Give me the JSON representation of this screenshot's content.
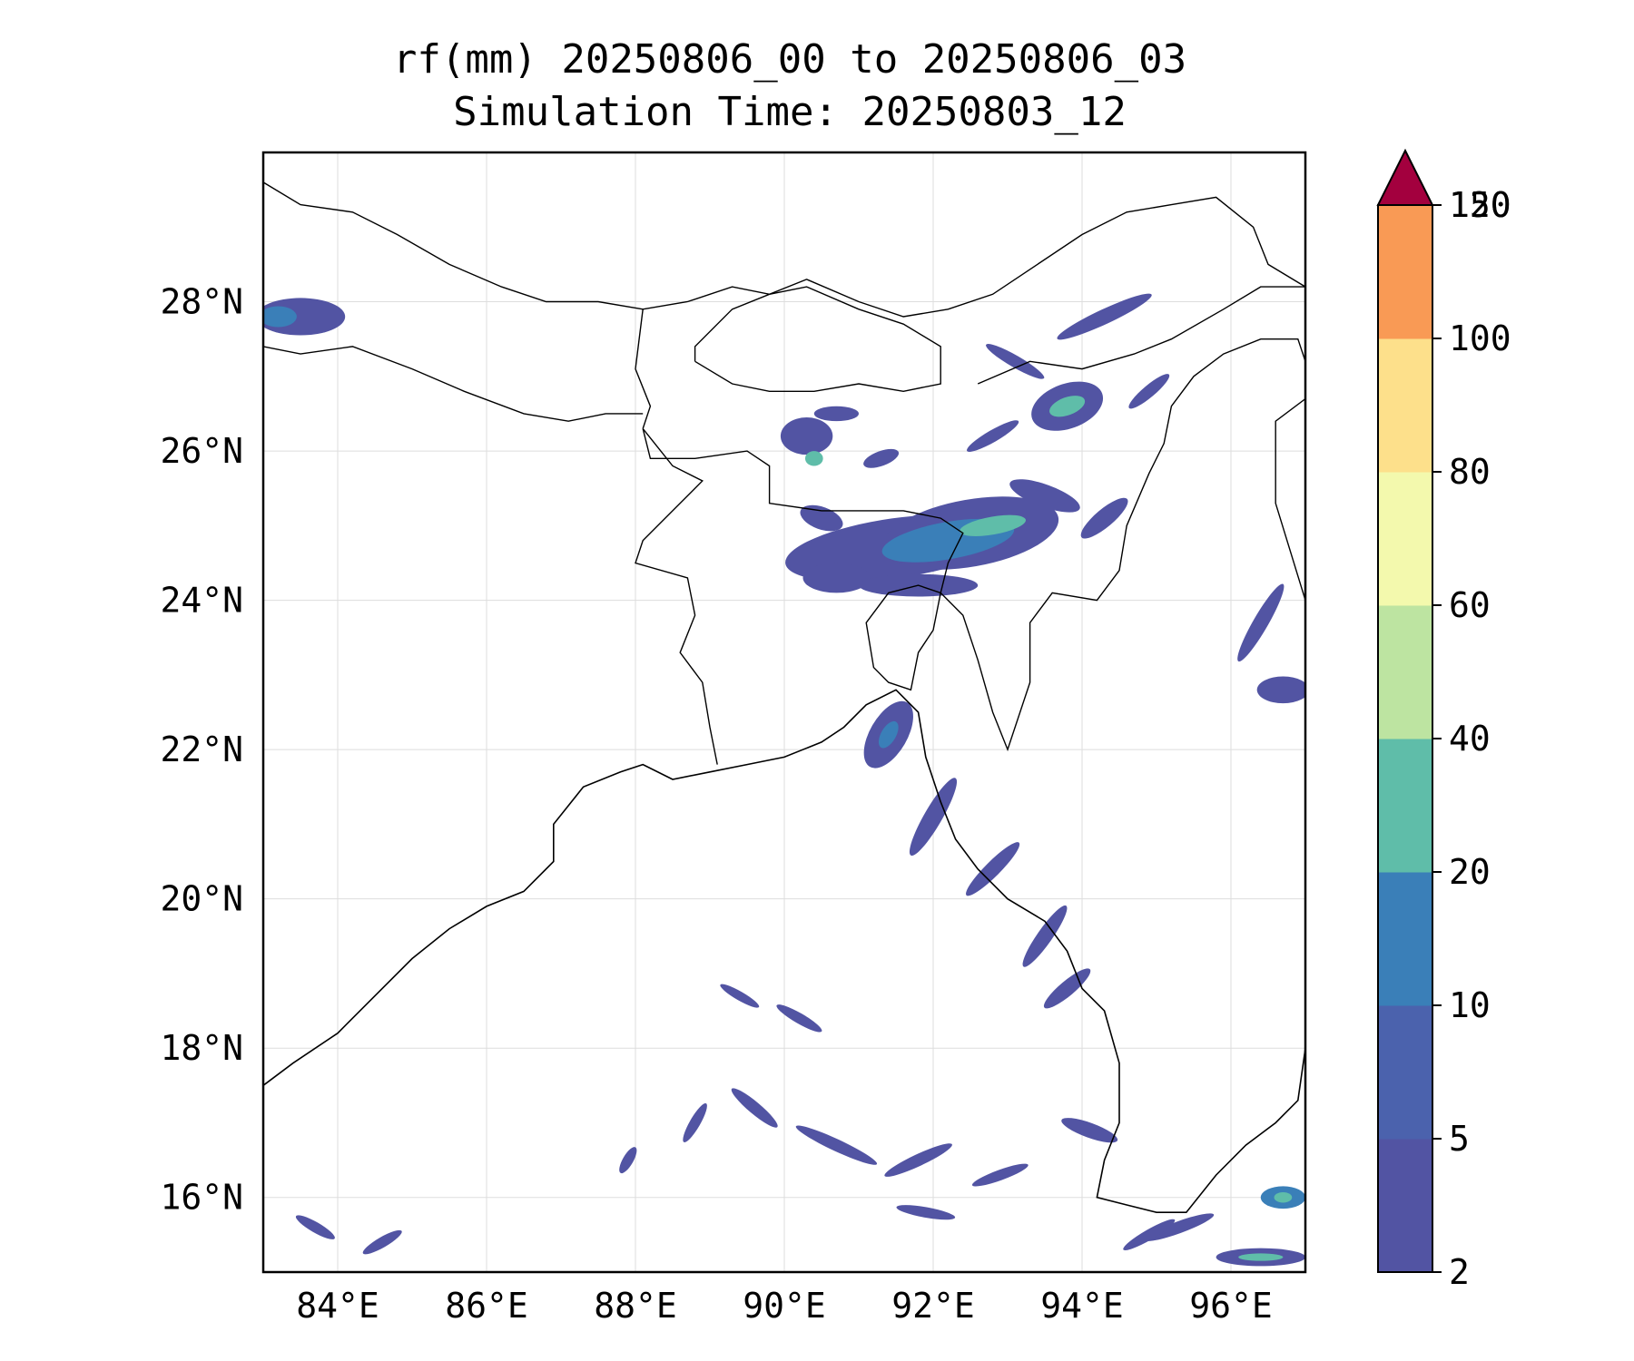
{
  "title": {
    "line1": "rf(mm) 20250806_00 to 20250806_03",
    "line2": "Simulation Time: 20250803_12"
  },
  "map": {
    "lon_range": [
      83,
      97
    ],
    "lat_range": [
      15,
      30
    ],
    "grid": true,
    "x_ticks": [
      {
        "value": 84,
        "label": "84°E"
      },
      {
        "value": 86,
        "label": "86°E"
      },
      {
        "value": 88,
        "label": "88°E"
      },
      {
        "value": 90,
        "label": "90°E"
      },
      {
        "value": 92,
        "label": "92°E"
      },
      {
        "value": 94,
        "label": "94°E"
      },
      {
        "value": 96,
        "label": "96°E"
      }
    ],
    "y_ticks": [
      {
        "value": 16,
        "label": "16°N"
      },
      {
        "value": 18,
        "label": "18°N"
      },
      {
        "value": 20,
        "label": "20°N"
      },
      {
        "value": 22,
        "label": "22°N"
      },
      {
        "value": 24,
        "label": "24°N"
      },
      {
        "value": 26,
        "label": "26°N"
      },
      {
        "value": 28,
        "label": "28°N"
      }
    ],
    "coastline": [
      [
        83,
        17.5
      ],
      [
        83.4,
        17.8
      ],
      [
        84,
        18.2
      ],
      [
        84.5,
        18.7
      ],
      [
        85,
        19.2
      ],
      [
        85.5,
        19.6
      ],
      [
        86,
        19.9
      ],
      [
        86.5,
        20.1
      ],
      [
        86.9,
        20.5
      ],
      [
        86.9,
        21
      ],
      [
        87.3,
        21.5
      ],
      [
        87.8,
        21.7
      ],
      [
        88.1,
        21.8
      ],
      [
        88.5,
        21.6
      ],
      [
        89,
        21.7
      ],
      [
        89.5,
        21.8
      ],
      [
        90,
        21.9
      ],
      [
        90.5,
        22.1
      ],
      [
        90.8,
        22.3
      ],
      [
        91.1,
        22.6
      ],
      [
        91.5,
        22.8
      ],
      [
        91.8,
        22.5
      ],
      [
        91.9,
        21.9
      ],
      [
        92.1,
        21.3
      ],
      [
        92.3,
        20.8
      ],
      [
        92.6,
        20.4
      ],
      [
        93,
        20
      ],
      [
        93.5,
        19.7
      ],
      [
        93.8,
        19.3
      ],
      [
        94,
        18.8
      ],
      [
        94.3,
        18.5
      ],
      [
        94.5,
        17.8
      ],
      [
        94.5,
        17
      ],
      [
        94.3,
        16.5
      ],
      [
        94.2,
        16
      ],
      [
        94.6,
        15.9
      ],
      [
        95,
        15.8
      ],
      [
        95.4,
        15.8
      ],
      [
        95.8,
        16.3
      ],
      [
        96.2,
        16.7
      ],
      [
        96.6,
        17
      ],
      [
        96.9,
        17.3
      ],
      [
        97,
        18
      ]
    ],
    "borders": [
      [
        [
          83,
          29.6
        ],
        [
          83.5,
          29.3
        ],
        [
          84.2,
          29.2
        ],
        [
          84.8,
          28.9
        ],
        [
          85.5,
          28.5
        ],
        [
          86.2,
          28.2
        ],
        [
          86.8,
          28
        ],
        [
          87.5,
          28
        ],
        [
          88.1,
          27.9
        ],
        [
          88.7,
          28
        ],
        [
          89.3,
          28.2
        ],
        [
          89.8,
          28.1
        ],
        [
          90.3,
          28.3
        ],
        [
          91,
          28
        ],
        [
          91.6,
          27.8
        ],
        [
          92.2,
          27.9
        ],
        [
          92.8,
          28.1
        ],
        [
          93.4,
          28.5
        ],
        [
          94,
          28.9
        ],
        [
          94.6,
          29.2
        ],
        [
          95.2,
          29.3
        ],
        [
          95.8,
          29.4
        ],
        [
          96.3,
          29
        ],
        [
          96.5,
          28.5
        ],
        [
          97,
          28.2
        ]
      ],
      [
        [
          83,
          27.4
        ],
        [
          83.5,
          27.3
        ],
        [
          84.2,
          27.4
        ],
        [
          85,
          27.1
        ],
        [
          85.7,
          26.8
        ],
        [
          86.5,
          26.5
        ],
        [
          87.1,
          26.4
        ],
        [
          87.6,
          26.5
        ],
        [
          88.1,
          26.5
        ]
      ],
      [
        [
          88.1,
          27.9
        ],
        [
          88,
          27.1
        ],
        [
          88.2,
          26.6
        ],
        [
          88.1,
          26.3
        ]
      ],
      [
        [
          88.8,
          27.2
        ],
        [
          89.3,
          26.9
        ],
        [
          89.8,
          26.8
        ],
        [
          90.4,
          26.8
        ],
        [
          91,
          26.9
        ],
        [
          91.6,
          26.8
        ],
        [
          92.1,
          26.9
        ],
        [
          92.1,
          27.4
        ],
        [
          91.6,
          27.7
        ],
        [
          91,
          27.9
        ],
        [
          90.3,
          28.2
        ],
        [
          89.8,
          28.1
        ],
        [
          89.3,
          27.9
        ],
        [
          88.8,
          27.4
        ],
        [
          88.8,
          27.2
        ]
      ],
      [
        [
          88.1,
          26.3
        ],
        [
          88.2,
          25.9
        ],
        [
          88.8,
          25.9
        ],
        [
          89.5,
          26
        ],
        [
          89.8,
          25.8
        ],
        [
          89.8,
          25.3
        ],
        [
          90.5,
          25.2
        ],
        [
          91,
          25.2
        ],
        [
          91.6,
          25.2
        ],
        [
          92.1,
          25.1
        ],
        [
          92.4,
          24.9
        ],
        [
          92.2,
          24.5
        ],
        [
          92.1,
          24.1
        ]
      ],
      [
        [
          88.1,
          26.3
        ],
        [
          88.5,
          25.8
        ],
        [
          88.9,
          25.6
        ],
        [
          88.5,
          25.2
        ],
        [
          88.1,
          24.8
        ],
        [
          88,
          24.5
        ],
        [
          88.7,
          24.3
        ],
        [
          88.8,
          23.8
        ],
        [
          88.6,
          23.3
        ],
        [
          88.9,
          22.9
        ],
        [
          89,
          22.3
        ],
        [
          89.1,
          21.8
        ]
      ],
      [
        [
          92.1,
          24.1
        ],
        [
          91.8,
          24.2
        ],
        [
          91.4,
          24.1
        ],
        [
          91.1,
          23.7
        ],
        [
          91.2,
          23.1
        ],
        [
          91.4,
          22.9
        ],
        [
          91.7,
          22.8
        ],
        [
          91.8,
          23.3
        ],
        [
          92,
          23.6
        ],
        [
          92.1,
          24.1
        ]
      ],
      [
        [
          92.1,
          24.1
        ],
        [
          92.4,
          23.8
        ],
        [
          92.6,
          23.2
        ],
        [
          92.8,
          22.5
        ],
        [
          93,
          22
        ],
        [
          93.3,
          22.9
        ],
        [
          93.3,
          23.7
        ],
        [
          93.6,
          24.1
        ],
        [
          94.2,
          24
        ],
        [
          94.5,
          24.4
        ],
        [
          94.6,
          25
        ],
        [
          94.9,
          25.7
        ],
        [
          95.1,
          26.1
        ],
        [
          95.2,
          26.6
        ],
        [
          95.5,
          27
        ],
        [
          95.9,
          27.3
        ],
        [
          96.4,
          27.5
        ],
        [
          96.9,
          27.5
        ],
        [
          97,
          27.2
        ]
      ],
      [
        [
          92.6,
          26.9
        ],
        [
          93.3,
          27.2
        ],
        [
          94,
          27.1
        ],
        [
          94.7,
          27.3
        ],
        [
          95.2,
          27.5
        ],
        [
          95.9,
          27.9
        ],
        [
          96.4,
          28.2
        ],
        [
          97,
          28.2
        ]
      ],
      [
        [
          97,
          24
        ],
        [
          96.6,
          25.3
        ],
        [
          96.6,
          26.4
        ],
        [
          97,
          26.7
        ]
      ]
    ],
    "rain_areas": [
      {
        "cx": 83.5,
        "cy": 27.8,
        "rx": 0.6,
        "ry": 0.25,
        "rot": 0,
        "c": "#5254a3"
      },
      {
        "cx": 83.2,
        "cy": 27.8,
        "rx": 0.25,
        "ry": 0.14,
        "rot": 0,
        "c": "#3a7fb8"
      },
      {
        "cx": 91.5,
        "cy": 24.7,
        "rx": 1.5,
        "ry": 0.4,
        "rot": -8,
        "c": "#5254a3"
      },
      {
        "cx": 92.5,
        "cy": 24.9,
        "rx": 1.2,
        "ry": 0.45,
        "rot": -10,
        "c": "#5254a3"
      },
      {
        "cx": 92.2,
        "cy": 24.8,
        "rx": 0.9,
        "ry": 0.25,
        "rot": -10,
        "c": "#3a7fb8"
      },
      {
        "cx": 92.8,
        "cy": 25,
        "rx": 0.45,
        "ry": 0.12,
        "rot": -10,
        "c": "#5fbda9"
      },
      {
        "cx": 90.7,
        "cy": 24.3,
        "rx": 0.45,
        "ry": 0.2,
        "rot": 0,
        "c": "#5254a3"
      },
      {
        "cx": 90.5,
        "cy": 25.1,
        "rx": 0.3,
        "ry": 0.15,
        "rot": 20,
        "c": "#5254a3"
      },
      {
        "cx": 91.8,
        "cy": 24.2,
        "rx": 0.8,
        "ry": 0.15,
        "rot": 0,
        "c": "#5254a3"
      },
      {
        "cx": 90.3,
        "cy": 26.2,
        "rx": 0.35,
        "ry": 0.25,
        "rot": 0,
        "c": "#5254a3"
      },
      {
        "cx": 90.4,
        "cy": 25.9,
        "rx": 0.12,
        "ry": 0.1,
        "rot": 0,
        "c": "#5fbda9"
      },
      {
        "cx": 91.3,
        "cy": 25.9,
        "rx": 0.25,
        "ry": 0.1,
        "rot": -20,
        "c": "#5254a3"
      },
      {
        "cx": 90.7,
        "cy": 26.5,
        "rx": 0.3,
        "ry": 0.1,
        "rot": 0,
        "c": "#5254a3"
      },
      {
        "cx": 93.8,
        "cy": 26.6,
        "rx": 0.5,
        "ry": 0.3,
        "rot": -20,
        "c": "#5254a3"
      },
      {
        "cx": 93.8,
        "cy": 26.6,
        "rx": 0.25,
        "ry": 0.12,
        "rot": -20,
        "c": "#5fbda9"
      },
      {
        "cx": 94.3,
        "cy": 27.8,
        "rx": 0.7,
        "ry": 0.1,
        "rot": -25,
        "c": "#5254a3"
      },
      {
        "cx": 93.1,
        "cy": 27.2,
        "rx": 0.45,
        "ry": 0.08,
        "rot": 30,
        "c": "#5254a3"
      },
      {
        "cx": 92.8,
        "cy": 26.2,
        "rx": 0.4,
        "ry": 0.08,
        "rot": -30,
        "c": "#5254a3"
      },
      {
        "cx": 93.5,
        "cy": 25.4,
        "rx": 0.5,
        "ry": 0.15,
        "rot": 20,
        "c": "#5254a3"
      },
      {
        "cx": 94.3,
        "cy": 25.1,
        "rx": 0.4,
        "ry": 0.12,
        "rot": -40,
        "c": "#5254a3"
      },
      {
        "cx": 94.9,
        "cy": 26.8,
        "rx": 0.35,
        "ry": 0.08,
        "rot": -40,
        "c": "#5254a3"
      },
      {
        "cx": 96.4,
        "cy": 23.7,
        "rx": 0.6,
        "ry": 0.1,
        "rot": -60,
        "c": "#5254a3"
      },
      {
        "cx": 96.7,
        "cy": 22.8,
        "rx": 0.35,
        "ry": 0.18,
        "rot": 0,
        "c": "#5254a3"
      },
      {
        "cx": 91.4,
        "cy": 22.2,
        "rx": 0.5,
        "ry": 0.25,
        "rot": -60,
        "c": "#5254a3"
      },
      {
        "cx": 91.4,
        "cy": 22.2,
        "rx": 0.2,
        "ry": 0.1,
        "rot": -60,
        "c": "#3a7fb8"
      },
      {
        "cx": 92,
        "cy": 21.1,
        "rx": 0.6,
        "ry": 0.12,
        "rot": -60,
        "c": "#5254a3"
      },
      {
        "cx": 92.8,
        "cy": 20.4,
        "rx": 0.5,
        "ry": 0.1,
        "rot": -45,
        "c": "#5254a3"
      },
      {
        "cx": 93.5,
        "cy": 19.5,
        "rx": 0.5,
        "ry": 0.1,
        "rot": -55,
        "c": "#5254a3"
      },
      {
        "cx": 93.8,
        "cy": 18.8,
        "rx": 0.4,
        "ry": 0.1,
        "rot": -40,
        "c": "#5254a3"
      },
      {
        "cx": 94.1,
        "cy": 16.9,
        "rx": 0.4,
        "ry": 0.1,
        "rot": 20,
        "c": "#5254a3"
      },
      {
        "cx": 90.7,
        "cy": 16.7,
        "rx": 0.6,
        "ry": 0.08,
        "rot": 25,
        "c": "#5254a3"
      },
      {
        "cx": 91.8,
        "cy": 16.5,
        "rx": 0.5,
        "ry": 0.08,
        "rot": -25,
        "c": "#5254a3"
      },
      {
        "cx": 89.6,
        "cy": 17.2,
        "rx": 0.4,
        "ry": 0.08,
        "rot": 40,
        "c": "#5254a3"
      },
      {
        "cx": 92.9,
        "cy": 16.3,
        "rx": 0.4,
        "ry": 0.07,
        "rot": -20,
        "c": "#5254a3"
      },
      {
        "cx": 88.8,
        "cy": 17.0,
        "rx": 0.3,
        "ry": 0.07,
        "rot": -60,
        "c": "#5254a3"
      },
      {
        "cx": 87.9,
        "cy": 16.5,
        "rx": 0.2,
        "ry": 0.07,
        "rot": -60,
        "c": "#5254a3"
      },
      {
        "cx": 83.7,
        "cy": 15.6,
        "rx": 0.3,
        "ry": 0.07,
        "rot": 30,
        "c": "#5254a3"
      },
      {
        "cx": 84.6,
        "cy": 15.4,
        "rx": 0.3,
        "ry": 0.07,
        "rot": -30,
        "c": "#5254a3"
      },
      {
        "cx": 95.3,
        "cy": 15.6,
        "rx": 0.5,
        "ry": 0.08,
        "rot": -20,
        "c": "#5254a3"
      },
      {
        "cx": 96.4,
        "cy": 15.2,
        "rx": 0.6,
        "ry": 0.12,
        "rot": 0,
        "c": "#5254a3"
      },
      {
        "cx": 96.4,
        "cy": 15.2,
        "rx": 0.3,
        "ry": 0.05,
        "rot": 0,
        "c": "#5fbda9"
      },
      {
        "cx": 96.7,
        "cy": 16.0,
        "rx": 0.3,
        "ry": 0.15,
        "rot": 0,
        "c": "#3a7fb8"
      },
      {
        "cx": 96.7,
        "cy": 16.0,
        "rx": 0.12,
        "ry": 0.07,
        "rot": 0,
        "c": "#5fbda9"
      },
      {
        "cx": 94.9,
        "cy": 15.5,
        "rx": 0.4,
        "ry": 0.07,
        "rot": -30,
        "c": "#5254a3"
      },
      {
        "cx": 90.2,
        "cy": 18.4,
        "rx": 0.35,
        "ry": 0.07,
        "rot": 30,
        "c": "#5254a3"
      },
      {
        "cx": 89.4,
        "cy": 18.7,
        "rx": 0.3,
        "ry": 0.06,
        "rot": 30,
        "c": "#5254a3"
      },
      {
        "cx": 91.9,
        "cy": 15.8,
        "rx": 0.4,
        "ry": 0.07,
        "rot": 10,
        "c": "#5254a3"
      }
    ]
  },
  "colorbar": {
    "levels": [
      {
        "label": "2",
        "color": "#5254a3"
      },
      {
        "label": "5",
        "color": "#4b62ad"
      },
      {
        "label": "10",
        "color": "#3a7fb8"
      },
      {
        "label": "20",
        "color": "#5fbda9"
      },
      {
        "label": "40",
        "color": "#bde4a1"
      },
      {
        "label": "60",
        "color": "#f3f9ad"
      },
      {
        "label": "80",
        "color": "#fde08b"
      },
      {
        "label": "100",
        "color": "#f99a55"
      },
      {
        "label": "120",
        "color": "#d63e4f"
      },
      {
        "label": "150",
        "color": "#a3003e"
      }
    ]
  }
}
